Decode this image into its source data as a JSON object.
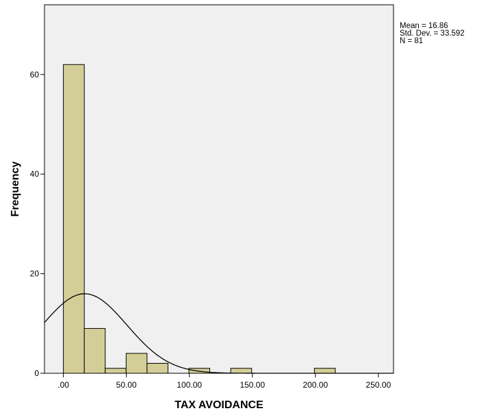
{
  "chart_data": {
    "type": "bar",
    "subtype": "histogram-with-normal-curve",
    "xlabel": "TAX AVOIDANCE",
    "ylabel": "Frequency",
    "xlim": [
      -15,
      262
    ],
    "ylim": [
      0,
      74
    ],
    "x_ticks": [
      {
        "value": 0,
        "label": ".00"
      },
      {
        "value": 50,
        "label": "50.00"
      },
      {
        "value": 100,
        "label": "100.00"
      },
      {
        "value": 150,
        "label": "150.00"
      },
      {
        "value": 200,
        "label": "200.00"
      },
      {
        "value": 250,
        "label": "250.00"
      }
    ],
    "y_ticks": [
      0,
      20,
      40,
      60
    ],
    "bins": [
      {
        "x0": 0,
        "x1": 16.6,
        "count": 62
      },
      {
        "x0": 16.6,
        "x1": 33.2,
        "count": 9
      },
      {
        "x0": 33.2,
        "x1": 49.8,
        "count": 1
      },
      {
        "x0": 49.8,
        "x1": 66.4,
        "count": 4
      },
      {
        "x0": 66.4,
        "x1": 83.0,
        "count": 2
      },
      {
        "x0": 99.6,
        "x1": 116.2,
        "count": 1
      },
      {
        "x0": 132.8,
        "x1": 149.4,
        "count": 1
      },
      {
        "x0": 199.2,
        "x1": 215.8,
        "count": 1
      }
    ],
    "stats": {
      "mean_text": "Mean = 16.86",
      "sd_text": "Std. Dev. = 33.592",
      "n_text": "N = 81"
    },
    "normal_curve": {
      "mean": 16.86,
      "sd": 33.592,
      "n": 81,
      "bin_width": 16.6
    },
    "colors": {
      "plot_bg": "#f0f0f0",
      "bar_fill": "#d3ce97",
      "bar_stroke": "#000000",
      "curve": "#000000"
    }
  }
}
